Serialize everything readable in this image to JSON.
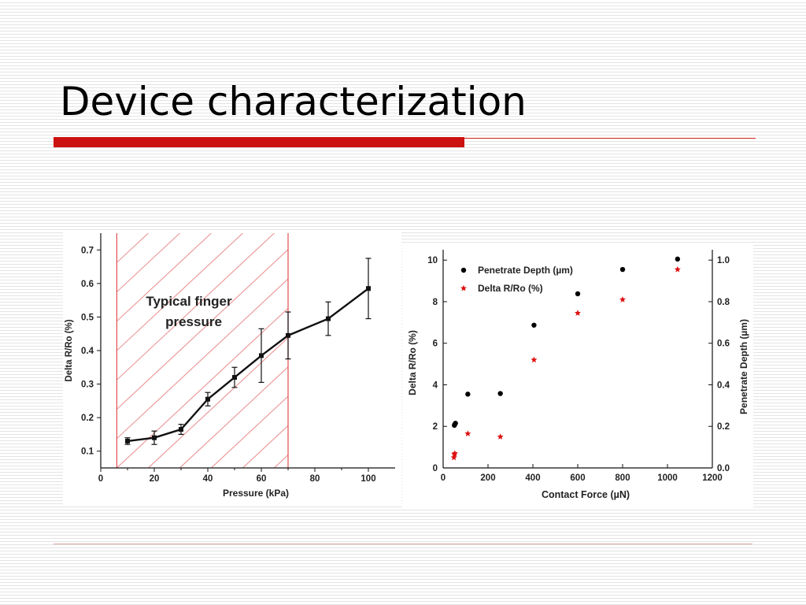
{
  "slide": {
    "title": "Device characterization"
  },
  "chart_data": [
    {
      "type": "line",
      "xlabel": "Pressure (kPa)",
      "ylabel": "Delta R/Ro (%)",
      "xlim": [
        0,
        110
      ],
      "ylim": [
        0.05,
        0.75
      ],
      "xticks": [
        0,
        20,
        40,
        60,
        80,
        100
      ],
      "yticks": [
        0.1,
        0.2,
        0.3,
        0.4,
        0.5,
        0.6,
        0.7
      ],
      "grid": false,
      "annotation": "Typical finger pressure",
      "shaded_region": [
        6,
        70
      ],
      "series": [
        {
          "x": [
            10,
            20,
            30,
            40,
            50,
            60,
            70,
            85,
            100
          ],
          "y": [
            0.13,
            0.14,
            0.165,
            0.255,
            0.32,
            0.385,
            0.445,
            0.495,
            0.585
          ],
          "err": [
            0.01,
            0.02,
            0.015,
            0.02,
            0.03,
            0.08,
            0.07,
            0.05,
            0.09
          ]
        }
      ]
    },
    {
      "type": "scatter",
      "xlabel": "Contact Force (µN)",
      "ylabel": "Delta R/Ro (%)",
      "y2label": "Penetrate Depth (µm)",
      "xlim": [
        0,
        1200
      ],
      "ylim": [
        0,
        10.5
      ],
      "y2lim": [
        0,
        1.05
      ],
      "xticks": [
        0,
        200,
        400,
        600,
        800,
        1000,
        1200
      ],
      "yticks": [
        0,
        2,
        4,
        6,
        8,
        10
      ],
      "y2ticks": [
        0.0,
        0.2,
        0.4,
        0.6,
        0.8,
        1.0
      ],
      "grid": false,
      "legend_position": "top-left",
      "series": [
        {
          "name": "Penetrate Depth (µm)",
          "axis": "right",
          "marker": "circle",
          "color": "#000000",
          "x": [
            50,
            52,
            55,
            110,
            255,
            405,
            600,
            800,
            1045
          ],
          "y": [
            0.205,
            0.21,
            0.215,
            0.355,
            0.358,
            0.687,
            0.838,
            0.955,
            1.005
          ]
        },
        {
          "name": "Delta R/Ro (%)",
          "axis": "left",
          "marker": "star",
          "color": "#dd1111",
          "x": [
            48,
            50,
            52,
            110,
            255,
            405,
            600,
            800,
            1045
          ],
          "y": [
            0.5,
            0.65,
            0.7,
            1.65,
            1.5,
            5.2,
            7.45,
            8.1,
            9.55
          ]
        }
      ]
    }
  ]
}
